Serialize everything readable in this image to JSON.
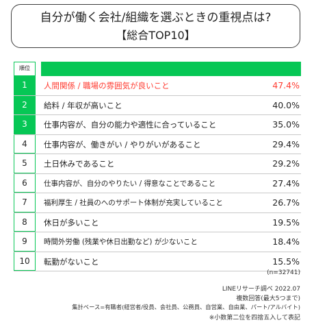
{
  "title": "自分が働く会社/組織を選ぶときの重視点は?",
  "subtitle": "【総合TOP10】",
  "header": {
    "rank_label": "順位"
  },
  "chart_data": {
    "type": "table",
    "title": "自分が働く会社/組織を選ぶときの重視点は?",
    "subtitle": "【総合TOP10】",
    "columns": [
      "順位",
      "",
      ""
    ],
    "rows": [
      {
        "rank": "1",
        "label": "人間関係 / 職場の雰囲気が良いこと",
        "value": "47.4%"
      },
      {
        "rank": "2",
        "label": "給料 / 年収が高いこと",
        "value": "40.0%"
      },
      {
        "rank": "3",
        "label": "仕事内容が、自分の能力や適性に合っていること",
        "value": "35.0%"
      },
      {
        "rank": "4",
        "label": "仕事内容が、働きがい / やりがいがあること",
        "value": "29.4%"
      },
      {
        "rank": "5",
        "label": "土日休みであること",
        "value": "29.2%"
      },
      {
        "rank": "6",
        "label": "仕事内容が、自分のやりたい / 得意なことであること",
        "value": "27.4%"
      },
      {
        "rank": "7",
        "label": "福利厚生 / 社員のへのサポート体制が充実していること",
        "value": "26.7%"
      },
      {
        "rank": "8",
        "label": "休日が多いこと",
        "value": "19.5%"
      },
      {
        "rank": "9",
        "label": "時間外労働 (残業や休日出勤など) が少ないこと",
        "value": "18.4%"
      },
      {
        "rank": "10",
        "label": "転勤がないこと",
        "value": "15.5%"
      }
    ]
  },
  "footer": {
    "n": "(n=32741)",
    "source": "LINEリサーチ調べ 2022.07",
    "answer_type": "複数回答(最大5つまで)",
    "base": "集計ベース=有職者(経営者/役員、会社員、公務員、自営業、自由業、パート/アルバイト)",
    "note": "※小数第二位を四捨五入して表記"
  },
  "colors": {
    "accent": "#06c755",
    "highlight": "#ff3b30"
  }
}
